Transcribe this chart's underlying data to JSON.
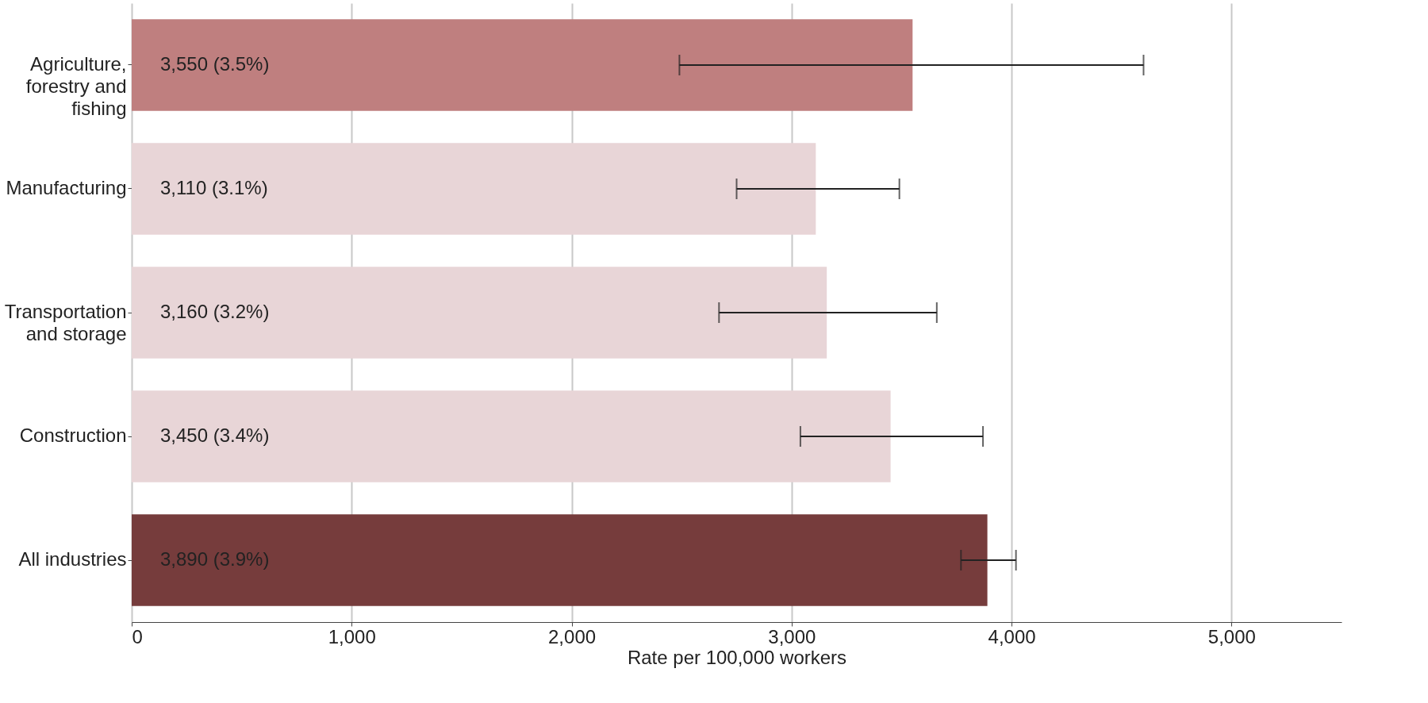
{
  "chart_data": {
    "type": "bar",
    "orientation": "horizontal",
    "xlabel": "Rate per 100,000 workers",
    "categories": [
      "Agriculture, forestry and fishing",
      "Manufacturing",
      "Transportation and storage",
      "Construction",
      "All industries"
    ],
    "values": [
      3550,
      3110,
      3160,
      3450,
      3890
    ],
    "colors": [
      "#bf7f7f",
      "#e8d5d7",
      "#e8d5d7",
      "#e8d5d7",
      "#763c3c"
    ],
    "errors": [
      [
        2490,
        4600
      ],
      [
        2750,
        3490
      ],
      [
        2670,
        3660
      ],
      [
        3040,
        3870
      ],
      [
        3770,
        4020
      ]
    ],
    "value_labels": [
      "3,550 (3.5%)",
      "3,110 (3.1%)",
      "3,160 (3.2%)",
      "3,450 (3.4%)",
      "3,890 (3.9%)"
    ],
    "xlim": [
      0,
      5500
    ],
    "xticks": [
      {
        "value": 0,
        "label": "0"
      },
      {
        "value": 1000,
        "label": "1,000"
      },
      {
        "value": 2000,
        "label": "2,000"
      },
      {
        "value": 3000,
        "label": "3,000"
      },
      {
        "value": 4000,
        "label": "4,000"
      },
      {
        "value": 5000,
        "label": "5,000"
      }
    ],
    "grid": "x",
    "legend": false
  }
}
